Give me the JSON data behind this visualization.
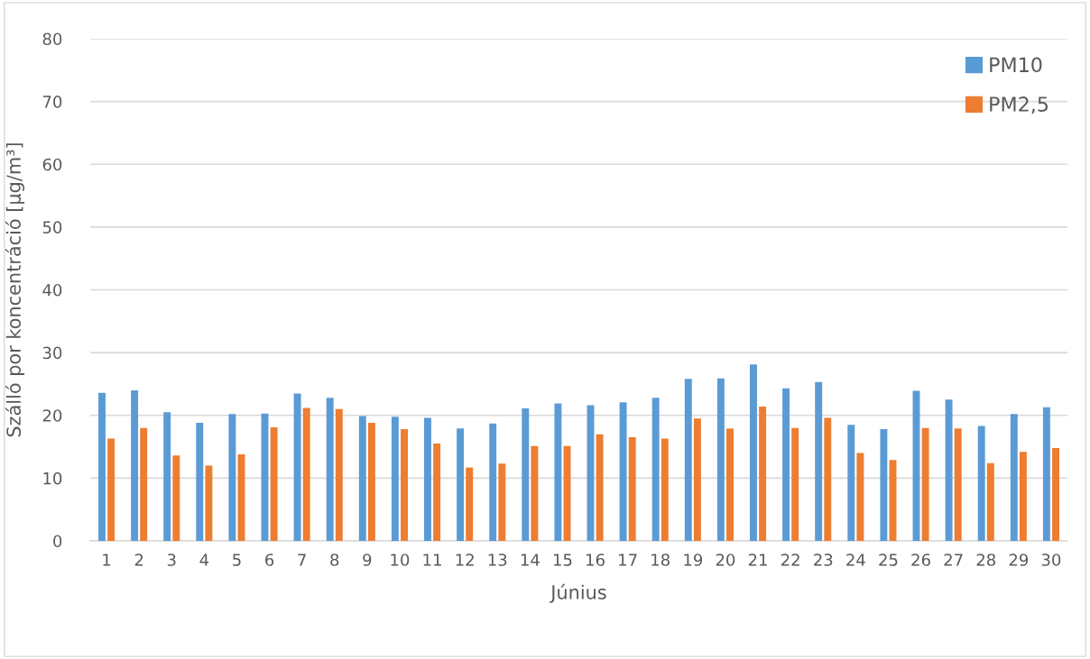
{
  "chart_data": {
    "type": "bar",
    "xlabel": "Június",
    "ylabel": "Szálló por koncentráció [µg/m³]",
    "categories": [
      "1",
      "2",
      "3",
      "4",
      "5",
      "6",
      "7",
      "8",
      "9",
      "10",
      "11",
      "12",
      "13",
      "14",
      "15",
      "16",
      "17",
      "18",
      "19",
      "20",
      "21",
      "22",
      "23",
      "24",
      "25",
      "26",
      "27",
      "28",
      "29",
      "30"
    ],
    "series": [
      {
        "name": "PM10",
        "color": "#5b9bd5",
        "values": [
          23.6,
          24.0,
          20.5,
          18.8,
          20.2,
          20.3,
          23.5,
          22.8,
          19.9,
          19.8,
          19.6,
          17.9,
          18.7,
          21.1,
          21.9,
          21.6,
          22.1,
          22.8,
          25.8,
          25.9,
          28.1,
          24.3,
          25.3,
          18.5,
          17.8,
          23.9,
          22.5,
          18.3,
          20.2,
          21.3
        ]
      },
      {
        "name": "PM2,5",
        "color": "#ed7d31",
        "values": [
          16.3,
          18.0,
          13.6,
          12.0,
          13.8,
          18.1,
          21.2,
          21.0,
          18.8,
          17.8,
          15.5,
          11.7,
          12.3,
          15.1,
          15.1,
          17.0,
          16.5,
          16.3,
          19.5,
          17.9,
          21.4,
          18.0,
          19.6,
          14.0,
          12.9,
          18.0,
          17.9,
          12.4,
          14.2,
          14.8
        ]
      }
    ],
    "ylim": [
      0,
      80
    ],
    "yticks": [
      0,
      10,
      20,
      30,
      40,
      50,
      60,
      70,
      80
    ],
    "grid": "y",
    "legend": "top right"
  }
}
